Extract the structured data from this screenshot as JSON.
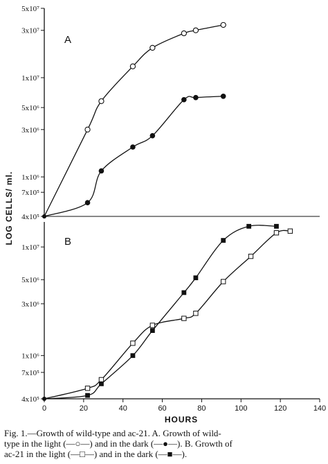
{
  "figure": {
    "y_axis_title": "LOG CELLS/ ml.",
    "x_axis_title": "HOURS",
    "caption_lines": [
      "Fig. 1.—Growth of wild-type and ac-21.   A.   Growth of wild-",
      "type in the light (—○—) and in the dark (—●—).   B.   Growth of",
      "ac-21 in the light (—□—) and in the dark (—■—)."
    ]
  },
  "chart_data": [
    {
      "type": "line",
      "panel": "A",
      "log_scale_y": true,
      "xlim": [
        0,
        140
      ],
      "ylim": [
        400000,
        50000000
      ],
      "y_ticks": [
        {
          "value": 400000,
          "label": "4x10⁵"
        },
        {
          "value": 700000,
          "label": "7x10⁵"
        },
        {
          "value": 1000000,
          "label": "1x10⁶"
        },
        {
          "value": 3000000,
          "label": "3x10⁶"
        },
        {
          "value": 5000000,
          "label": "5x10⁶"
        },
        {
          "value": 10000000,
          "label": "1x10⁷"
        },
        {
          "value": 30000000,
          "label": "3x10⁷"
        },
        {
          "value": 50000000,
          "label": "5x10⁷"
        }
      ],
      "series": [
        {
          "marker": "open-circle",
          "x": [
            0,
            22,
            29,
            45,
            55,
            71,
            77,
            91
          ],
          "y": [
            400000,
            3000000,
            5800000,
            13000000,
            20000000,
            28000000,
            30000000,
            34000000
          ]
        },
        {
          "marker": "filled-circle",
          "x": [
            0,
            22,
            29,
            45,
            55,
            71,
            77,
            91
          ],
          "y": [
            400000,
            550000,
            1150000,
            2000000,
            2600000,
            6000000,
            6300000,
            6500000
          ]
        }
      ]
    },
    {
      "type": "line",
      "panel": "B",
      "log_scale_y": true,
      "xlim": [
        0,
        140
      ],
      "ylim": [
        350000,
        17000000
      ],
      "x_ticks": [
        0,
        20,
        40,
        60,
        80,
        100,
        120,
        140
      ],
      "y_ticks": [
        {
          "value": 400000,
          "label": "4x10⁵"
        },
        {
          "value": 700000,
          "label": "7x10⁵"
        },
        {
          "value": 1000000,
          "label": "1x10⁶"
        },
        {
          "value": 3000000,
          "label": "3x10⁶"
        },
        {
          "value": 5000000,
          "label": "5x10⁶"
        },
        {
          "value": 10000000,
          "label": "1x10⁷"
        }
      ],
      "series": [
        {
          "marker": "open-square",
          "x": [
            0,
            22,
            29,
            45,
            55,
            71,
            77,
            91,
            105,
            118,
            125
          ],
          "y": [
            400000,
            500000,
            600000,
            1300000,
            1900000,
            2200000,
            2450000,
            4800000,
            8200000,
            13500000,
            14000000
          ]
        },
        {
          "marker": "filled-square",
          "x": [
            0,
            22,
            29,
            45,
            55,
            71,
            77,
            91,
            104,
            118
          ],
          "y": [
            400000,
            430000,
            550000,
            1000000,
            1700000,
            3800000,
            5200000,
            11500000,
            15500000,
            15500000
          ]
        }
      ]
    }
  ]
}
